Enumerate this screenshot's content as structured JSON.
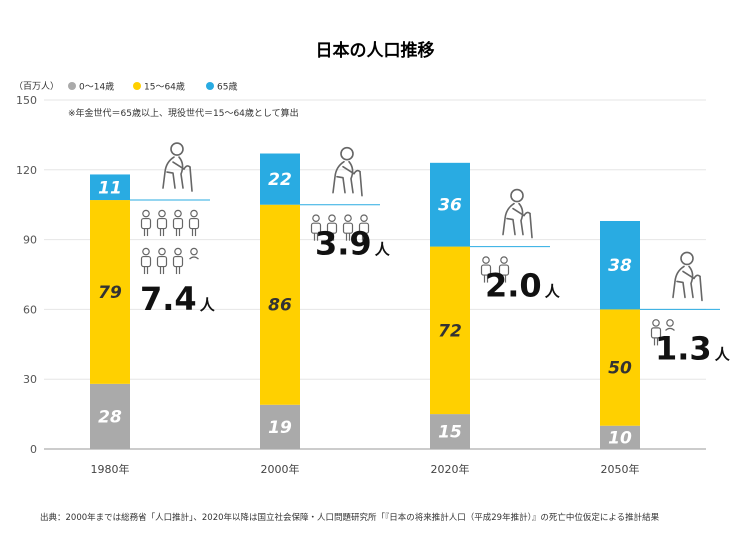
{
  "chart_data": {
    "type": "bar",
    "stacked": true,
    "title": "日本の人口推移",
    "unit_label": "（百万人）",
    "note": "※年金世代＝65歳以上、現役世代＝15〜64歳として算出",
    "source": "出典：2000年までは総務省「人口推計」、2020年以降は国立社会保障・人口問題研究所「『日本の将来推計人口（平成29年推計）』の死亡中位仮定による推計結果",
    "categories": [
      "1980年",
      "2000年",
      "2020年",
      "2050年"
    ],
    "series": [
      {
        "name": "0〜14歳",
        "color": "#aaaaaa",
        "values": [
          28,
          19,
          15,
          10
        ],
        "labels": [
          "28",
          "19",
          "15",
          "10"
        ]
      },
      {
        "name": "15〜64歳",
        "color": "#ffd000",
        "values": [
          79,
          86,
          72,
          50
        ],
        "labels": [
          "79",
          "86",
          "72",
          "50"
        ]
      },
      {
        "name": "65歳",
        "color": "#29abe2",
        "values": [
          11,
          22,
          36,
          38
        ],
        "labels": [
          "11",
          "22",
          "36",
          "38"
        ]
      }
    ],
    "ylim": [
      0,
      150
    ],
    "yticks": [
      0,
      30,
      60,
      90,
      120,
      150
    ],
    "ratios": [
      {
        "value": "7.4",
        "unit": "人",
        "people": 7.4
      },
      {
        "value": "3.9",
        "unit": "人",
        "people": 3.9
      },
      {
        "value": "2.0",
        "unit": "人",
        "people": 2.0
      },
      {
        "value": "1.3",
        "unit": "人",
        "people": 1.3
      }
    ],
    "colors": {
      "grid": "#e6e6e6",
      "axis": "#999999",
      "connector": "#29abe2",
      "icon": "#666666"
    }
  }
}
